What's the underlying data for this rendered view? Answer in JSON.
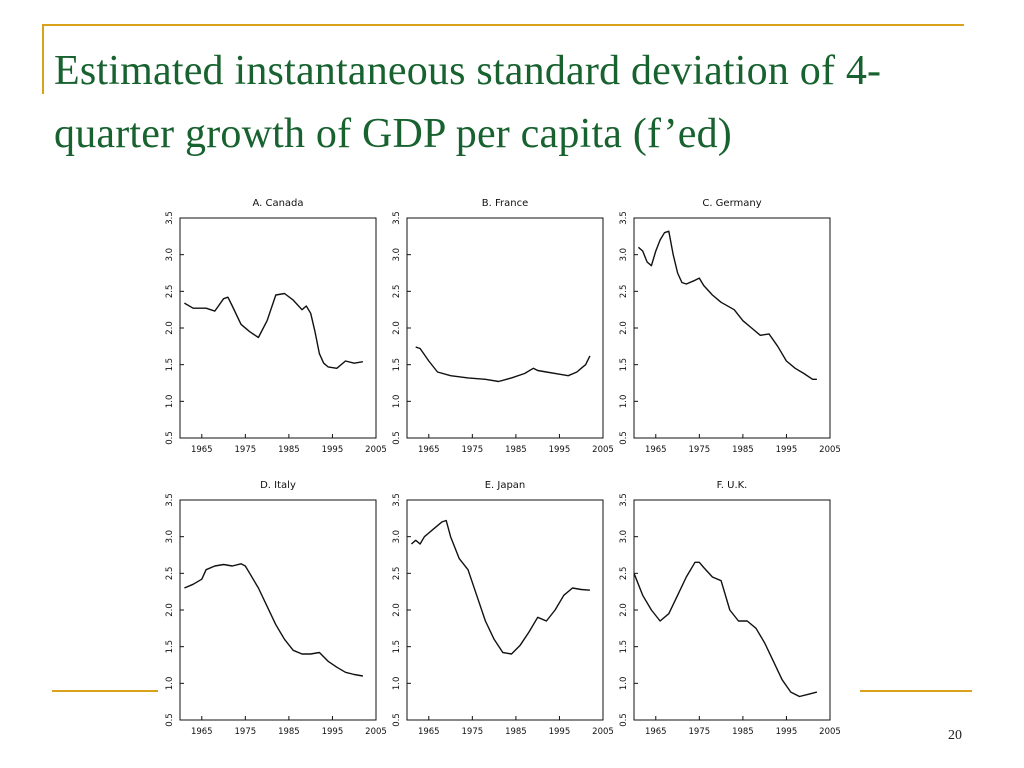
{
  "slide": {
    "title": "Estimated instantaneous standard deviation of 4-quarter growth of GDP per capita (f’ed)",
    "page_number": "20",
    "colors": {
      "title": "#17622f",
      "accent": "#d9a21b",
      "line": "#111111"
    }
  },
  "chart_data": [
    {
      "type": "line",
      "title": "A. Canada",
      "xlim": [
        1960,
        2005
      ],
      "ylim": [
        0.5,
        3.5
      ],
      "xticks": [
        "1965",
        "1975",
        "1985",
        "1995",
        "2005"
      ],
      "yticks": [
        "0.5",
        "1.0",
        "1.5",
        "2.0",
        "2.5",
        "3.0",
        "3.5"
      ],
      "x": [
        1961,
        1963,
        1966,
        1968,
        1970,
        1971,
        1972,
        1974,
        1976,
        1978,
        1980,
        1982,
        1984,
        1986,
        1988,
        1989,
        1990,
        1991,
        1992,
        1993,
        1994,
        1996,
        1998,
        2000,
        2002
      ],
      "y": [
        2.34,
        2.27,
        2.27,
        2.23,
        2.4,
        2.42,
        2.3,
        2.05,
        1.95,
        1.87,
        2.1,
        2.45,
        2.47,
        2.38,
        2.25,
        2.3,
        2.2,
        1.95,
        1.65,
        1.52,
        1.47,
        1.45,
        1.55,
        1.52,
        1.54
      ]
    },
    {
      "type": "line",
      "title": "B. France",
      "xlim": [
        1960,
        2005
      ],
      "ylim": [
        0.5,
        3.5
      ],
      "xticks": [
        "1965",
        "1975",
        "1985",
        "1995",
        "2005"
      ],
      "yticks": [
        "0.5",
        "1.0",
        "1.5",
        "2.0",
        "2.5",
        "3.0",
        "3.5"
      ],
      "x": [
        1962,
        1963,
        1965,
        1967,
        1970,
        1974,
        1978,
        1981,
        1984,
        1987,
        1989,
        1990,
        1992,
        1995,
        1997,
        1999,
        2000,
        2001,
        2002
      ],
      "y": [
        1.74,
        1.72,
        1.55,
        1.4,
        1.35,
        1.32,
        1.3,
        1.27,
        1.32,
        1.38,
        1.45,
        1.42,
        1.4,
        1.37,
        1.35,
        1.4,
        1.45,
        1.5,
        1.62
      ]
    },
    {
      "type": "line",
      "title": "C. Germany",
      "xlim": [
        1960,
        2005
      ],
      "ylim": [
        0.5,
        3.5
      ],
      "xticks": [
        "1965",
        "1975",
        "1985",
        "1995",
        "2005"
      ],
      "yticks": [
        "0.5",
        "1.0",
        "1.5",
        "2.0",
        "2.5",
        "3.0",
        "3.5"
      ],
      "x": [
        1961,
        1962,
        1963,
        1964,
        1965,
        1966,
        1967,
        1968,
        1969,
        1970,
        1971,
        1972,
        1974,
        1975,
        1976,
        1978,
        1980,
        1983,
        1985,
        1987,
        1989,
        1991,
        1993,
        1995,
        1997,
        1999,
        2001,
        2002
      ],
      "y": [
        3.1,
        3.05,
        2.9,
        2.85,
        3.05,
        3.2,
        3.3,
        3.32,
        3.0,
        2.75,
        2.62,
        2.6,
        2.65,
        2.68,
        2.58,
        2.45,
        2.35,
        2.25,
        2.1,
        2.0,
        1.9,
        1.92,
        1.75,
        1.55,
        1.45,
        1.38,
        1.3,
        1.3
      ]
    },
    {
      "type": "line",
      "title": "D. Italy",
      "xlim": [
        1960,
        2005
      ],
      "ylim": [
        0.5,
        3.5
      ],
      "xticks": [
        "1965",
        "1975",
        "1985",
        "1995",
        "2005"
      ],
      "yticks": [
        "0.5",
        "1.0",
        "1.5",
        "2.0",
        "2.5",
        "3.0",
        "3.5"
      ],
      "x": [
        1961,
        1963,
        1965,
        1966,
        1968,
        1970,
        1972,
        1974,
        1975,
        1976,
        1978,
        1980,
        1982,
        1984,
        1986,
        1988,
        1990,
        1992,
        1994,
        1996,
        1998,
        2000,
        2002
      ],
      "y": [
        2.3,
        2.35,
        2.42,
        2.55,
        2.6,
        2.62,
        2.6,
        2.63,
        2.6,
        2.5,
        2.3,
        2.05,
        1.8,
        1.6,
        1.45,
        1.4,
        1.4,
        1.42,
        1.3,
        1.22,
        1.15,
        1.12,
        1.1
      ]
    },
    {
      "type": "line",
      "title": "E. Japan",
      "xlim": [
        1960,
        2005
      ],
      "ylim": [
        0.5,
        3.5
      ],
      "xticks": [
        "1965",
        "1975",
        "1985",
        "1995",
        "2005"
      ],
      "yticks": [
        "0.5",
        "1.0",
        "1.5",
        "2.0",
        "2.5",
        "3.0",
        "3.5"
      ],
      "x": [
        1961,
        1962,
        1963,
        1964,
        1965,
        1966,
        1967,
        1968,
        1969,
        1970,
        1972,
        1974,
        1976,
        1978,
        1980,
        1982,
        1984,
        1986,
        1988,
        1990,
        1992,
        1994,
        1996,
        1998,
        2000,
        2002
      ],
      "y": [
        2.9,
        2.95,
        2.9,
        3.0,
        3.05,
        3.1,
        3.15,
        3.2,
        3.22,
        3.0,
        2.7,
        2.55,
        2.2,
        1.85,
        1.6,
        1.42,
        1.4,
        1.52,
        1.7,
        1.9,
        1.85,
        2.0,
        2.2,
        2.3,
        2.28,
        2.27
      ]
    },
    {
      "type": "line",
      "title": "F. U.K.",
      "xlim": [
        1960,
        2005
      ],
      "ylim": [
        0.5,
        3.5
      ],
      "xticks": [
        "1965",
        "1975",
        "1985",
        "1995",
        "2005"
      ],
      "yticks": [
        "0.5",
        "1.0",
        "1.5",
        "2.0",
        "2.5",
        "3.0",
        "3.5"
      ],
      "x": [
        1960,
        1962,
        1964,
        1966,
        1968,
        1970,
        1972,
        1974,
        1975,
        1976,
        1978,
        1980,
        1982,
        1984,
        1986,
        1988,
        1990,
        1992,
        1994,
        1996,
        1998,
        2000,
        2002
      ],
      "y": [
        2.5,
        2.2,
        2.0,
        1.85,
        1.95,
        2.2,
        2.45,
        2.65,
        2.65,
        2.58,
        2.45,
        2.4,
        2.0,
        1.85,
        1.85,
        1.75,
        1.55,
        1.3,
        1.05,
        0.88,
        0.82,
        0.85,
        0.88
      ]
    }
  ]
}
